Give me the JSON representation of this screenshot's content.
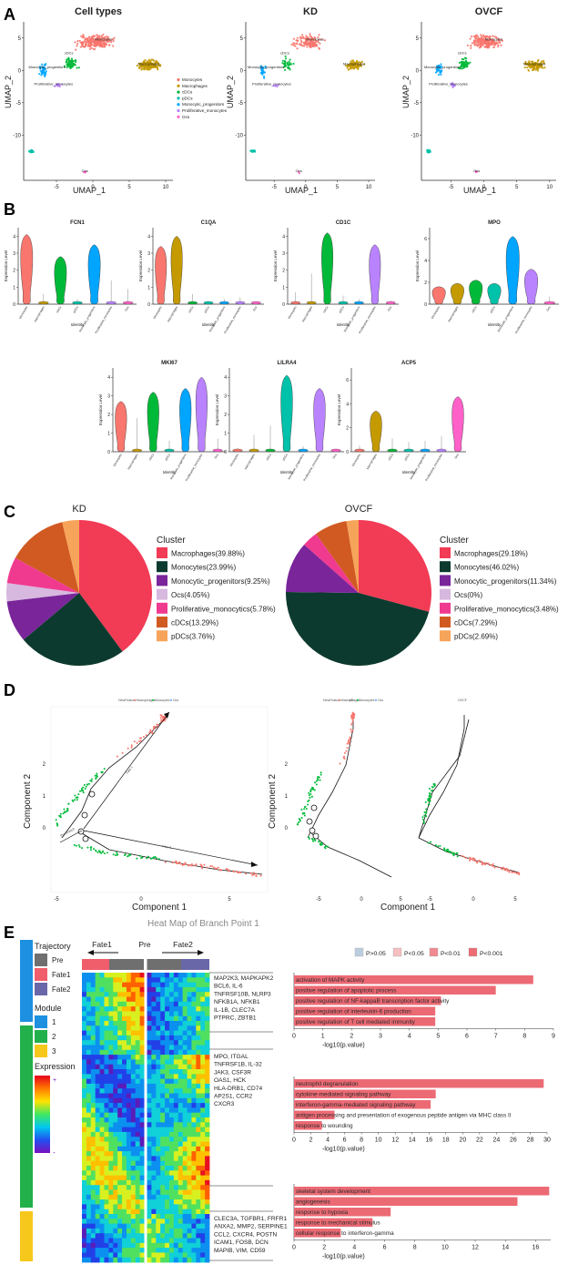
{
  "colors": {
    "Monocytes": "#f8766d",
    "Macrophages": "#c49a00",
    "cDCs": "#00b938",
    "pDCs": "#00c1a9",
    "Monocytic_progenitors": "#00a5ff",
    "Proliferative_monocytes": "#b982ff",
    "Ocs": "#ff61c9"
  },
  "panelA": {
    "letter": "A",
    "xlabel": "UMAP_1",
    "ylabel": "UMAP_2",
    "plots": [
      {
        "title": "Cell types",
        "xticks": [
          "-5",
          "0",
          "5",
          "10"
        ],
        "yticks": [
          "5",
          "0",
          "-5",
          "-10"
        ]
      },
      {
        "title": "KD",
        "xticks": [
          "-5",
          "0",
          "5",
          "10"
        ],
        "yticks": [
          "5",
          "0",
          "-5",
          "-10"
        ]
      },
      {
        "title": "OVCF",
        "xticks": [
          "-5",
          "0",
          "5",
          "10"
        ],
        "yticks": [
          "5",
          "0",
          "-5",
          "-10"
        ]
      }
    ],
    "cluster_labels": [
      "Monocytes",
      "Macrophages",
      "Monocytic_progenitors",
      "Proliferative_monocytes",
      "Ocs",
      "cDCs"
    ],
    "legend": [
      "Monocytes",
      "Macrophages",
      "cDCs",
      "pDCs",
      "Monocytic_progenitors",
      "Proliferative_monocytes",
      "Ocs"
    ]
  },
  "panelB": {
    "letter": "B",
    "ylabel": "Expression Level",
    "xlabel": "Identity",
    "categories": [
      "Monocytes",
      "Macrophages",
      "cDCs",
      "pDCs",
      "Monocytic_progenitors",
      "Proliferative_monocytes",
      "Ocs"
    ],
    "genes": [
      {
        "name": "FCN1",
        "yticks": [
          "0",
          "1",
          "2",
          "3",
          "4"
        ],
        "ymax": 4.5,
        "heights": [
          4.1,
          0.6,
          2.8,
          0.3,
          3.5,
          1.4,
          0.9
        ]
      },
      {
        "name": "C1QA",
        "yticks": [
          "0",
          "1",
          "2",
          "3",
          "4"
        ],
        "ymax": 4.5,
        "heights": [
          3.4,
          4.0,
          0.6,
          0.1,
          0.3,
          0.4,
          0.1
        ]
      },
      {
        "name": "CD1C",
        "yticks": [
          "0",
          "1",
          "2",
          "3",
          "4"
        ],
        "ymax": 4.5,
        "heights": [
          0.7,
          1.8,
          4.2,
          0.5,
          0.3,
          3.5,
          0.2
        ]
      },
      {
        "name": "MPO",
        "yticks": [
          "0",
          "2",
          "4",
          "6"
        ],
        "ymax": 7,
        "heights": [
          1.6,
          1.9,
          2.2,
          1.9,
          6.2,
          3.2,
          0.7
        ]
      },
      {
        "name": "MKI67",
        "yticks": [
          "0",
          "1",
          "2",
          "3",
          "4"
        ],
        "ymax": 4.5,
        "heights": [
          2.7,
          1.8,
          3.2,
          0.6,
          3.4,
          4.0,
          0.7
        ]
      },
      {
        "name": "LILRA4",
        "yticks": [
          "0",
          "1",
          "2",
          "3",
          "4"
        ],
        "ymax": 4.5,
        "heights": [
          0.2,
          0.9,
          1.4,
          4.1,
          0.3,
          3.4,
          0.1
        ]
      },
      {
        "name": "ACP5",
        "yticks": [
          "0",
          "2",
          "4",
          "6"
        ],
        "ymax": 7,
        "heights": [
          0.5,
          3.4,
          1.1,
          0.8,
          0.9,
          1.3,
          4.6
        ]
      }
    ]
  },
  "panelC": {
    "letter": "C",
    "legend_title": "Cluster",
    "pies": [
      {
        "title": "KD",
        "slices": [
          {
            "name": "Macrophages",
            "value": 39.88,
            "label": "Macrophages(39.88%)",
            "color": "#f23b55"
          },
          {
            "name": "Monocytes",
            "value": 23.99,
            "label": "Monocytes(23.99%)",
            "color": "#0d3a2e"
          },
          {
            "name": "Monocytic_progenitors",
            "value": 9.25,
            "label": "Monocytic_progenitors(9.25%)",
            "color": "#7a259a"
          },
          {
            "name": "Ocs",
            "value": 4.05,
            "label": "Ocs(4.05%)",
            "color": "#d7b8de"
          },
          {
            "name": "Proliferative_monocytics",
            "value": 5.78,
            "label": "Proliferative_monocytics(5.78%)",
            "color": "#f03a90"
          },
          {
            "name": "cDCs",
            "value": 13.29,
            "label": "cDCs(13.29%)",
            "color": "#d05a22"
          },
          {
            "name": "pDCs",
            "value": 3.76,
            "label": "pDCs(3.76%)",
            "color": "#f6a45a"
          }
        ]
      },
      {
        "title": "OVCF",
        "slices": [
          {
            "name": "Macrophages",
            "value": 29.18,
            "label": "Macrophages(29.18%)",
            "color": "#f23b55"
          },
          {
            "name": "Monocytes",
            "value": 46.02,
            "label": "Monocytes(46.02%)",
            "color": "#0d3a2e"
          },
          {
            "name": "Monocytic_progenitors",
            "value": 11.34,
            "label": "Monocytic_progenitors(11.34%)",
            "color": "#7a259a"
          },
          {
            "name": "Ocs",
            "value": 0,
            "label": "Ocs(0%)",
            "color": "#d7b8de"
          },
          {
            "name": "Proliferative_monocytics",
            "value": 3.48,
            "label": "Proliferative_monocytics(3.48%)",
            "color": "#f03a90"
          },
          {
            "name": "cDCs",
            "value": 7.29,
            "label": "cDCs(7.29%)",
            "color": "#d05a22"
          },
          {
            "name": "pDCs",
            "value": 2.69,
            "label": "pDCs(2.69%)",
            "color": "#f6a45a"
          }
        ]
      }
    ]
  },
  "panelD": {
    "letter": "D",
    "legend_title": "NewFeature",
    "legend": [
      "Macrophages",
      "Monocytes",
      "Ocs"
    ],
    "legend_colors": [
      "#f8766d",
      "#00ba38",
      "#619cff"
    ],
    "xlabel": "Component 1",
    "ylabel": "Component 2",
    "xticks": [
      "-5",
      "0",
      "5"
    ],
    "yticks": [
      "2",
      "1",
      "0"
    ],
    "facets": [
      "KD",
      "OVCF"
    ],
    "arrow_labels": [
      "Fate 1",
      "Fate 2",
      "Pre-branch"
    ]
  },
  "panelE": {
    "letter": "E",
    "heatmap_title": "Heat Map of Branch Point 1",
    "legend_trajectory_title": "Trajectory",
    "trajectory": [
      {
        "label": "Pre",
        "color": "#6f6f6f"
      },
      {
        "label": "Fate1",
        "color": "#f05d6b"
      },
      {
        "label": "Fate2",
        "color": "#6a67a8"
      }
    ],
    "legend_module_title": "Module",
    "modules": [
      {
        "label": "1",
        "color": "#1e90e0"
      },
      {
        "label": "2",
        "color": "#22b04b"
      },
      {
        "label": "3",
        "color": "#f7c81c"
      }
    ],
    "legend_expression_title": "Expression",
    "expression_plus": "+",
    "expression_minus": "-",
    "header_labels": [
      "Fate1",
      "Pre",
      "Fate2"
    ],
    "gene_groups": [
      [
        "MAP2K3, MAPKAPK2",
        "BCL6, IL-6",
        "TNFRSF10B, NLRP3",
        "NFKB1A, NFKB1",
        "IL-1B, CLEC7A",
        "PTPRC, ZBTB1"
      ],
      [
        "MPO, ITGAL",
        "TNFRSF1B, IL-32",
        "JAK3, CSF3R",
        "OAS1, HCK",
        "HLA-DRB1, CD74",
        "AP2S1, CCR2",
        "CXCR3"
      ],
      [
        "CLEC3A, TGFBR1, FRFR1",
        "ANXA2, MMP2, SERPINE1",
        "CCL2, CXCR4, POSTN",
        "ICAM1, FOSB, DCN",
        "MAPIB, VIM, CD59"
      ]
    ],
    "pval_legend": [
      {
        "label": "P>0.05",
        "color": "#bccde0"
      },
      {
        "label": "P<0.05",
        "color": "#f6bfc2"
      },
      {
        "label": "P<0.01",
        "color": "#f0898f"
      },
      {
        "label": "P<0.001",
        "color": "#ec6a74"
      }
    ],
    "bar_charts": [
      {
        "xlabel": "-log10(p.value)",
        "xticks": [
          "0",
          "1",
          "2",
          "3",
          "4",
          "5",
          "6",
          "7",
          "8",
          "9"
        ],
        "xmax": 9,
        "bars": [
          {
            "term": "activation of MAPK activity",
            "value": 8.3
          },
          {
            "term": "positive regulation of apoptotic process",
            "value": 7.0
          },
          {
            "term": "positive regulation of NF-kappaB transcription factor activity",
            "value": 5.1
          },
          {
            "term": "positive regulation of interleukin-6 production",
            "value": 4.9
          },
          {
            "term": "positive regulation of T cell mediated immunity",
            "value": 4.9
          }
        ]
      },
      {
        "xlabel": "-log10(p.value)",
        "xticks": [
          "0",
          "2",
          "4",
          "6",
          "8",
          "10",
          "12",
          "14",
          "16",
          "18",
          "20",
          "22",
          "24",
          "26",
          "28",
          "30"
        ],
        "xmax": 30,
        "bars": [
          {
            "term": "neutrophil degranulation",
            "value": 29.6
          },
          {
            "term": "cytokine-mediated signaling pathway",
            "value": 16.8
          },
          {
            "term": "interferon-gamma-mediated signaling pathway",
            "value": 16.2
          },
          {
            "term": "antigen processing and presentation of exogenous peptide antigen via MHC class II",
            "value": 4.8
          },
          {
            "term": "response to wounding",
            "value": 3.3
          }
        ]
      },
      {
        "xlabel": "-log10(p.value)",
        "xticks": [
          "0",
          "2",
          "4",
          "6",
          "8",
          "10",
          "12",
          "14",
          "16"
        ],
        "xmax": 17,
        "bars": [
          {
            "term": "skeletal system development",
            "value": 16.9
          },
          {
            "term": "angiogenesis",
            "value": 14.8
          },
          {
            "term": "response to hypoxia",
            "value": 6.4
          },
          {
            "term": "response to mechanical stimulus",
            "value": 5.2
          },
          {
            "term": "cellular response to interferon-gamma",
            "value": 3.1
          }
        ]
      }
    ]
  }
}
